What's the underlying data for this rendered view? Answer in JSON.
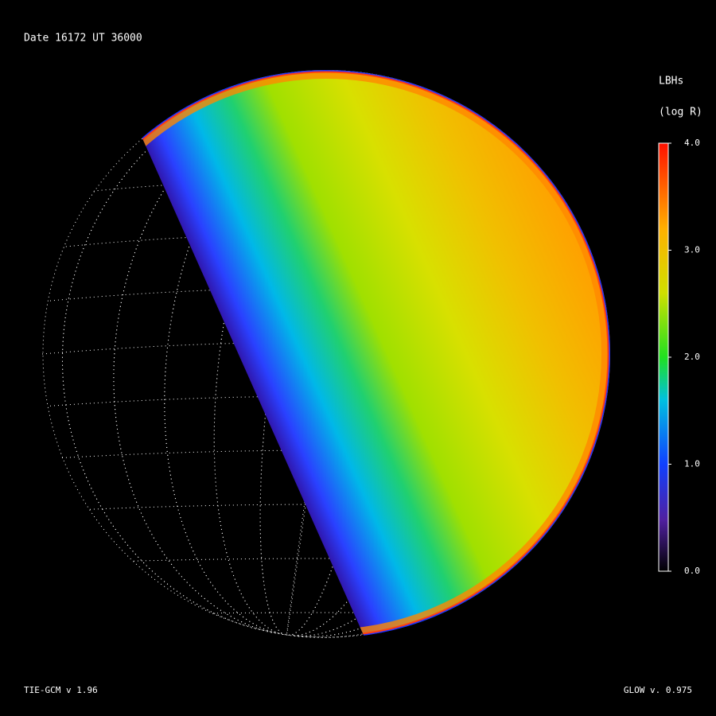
{
  "header": {
    "date": "Date 16172  UT 36000"
  },
  "colorbar": {
    "title": "LBHs",
    "units": "(log R)",
    "range": [
      0,
      4
    ],
    "ticks": [
      {
        "value": 0,
        "label": "0.0"
      },
      {
        "value": 1,
        "label": "1.0"
      },
      {
        "value": 2,
        "label": "2.0"
      },
      {
        "value": 3,
        "label": "3.0"
      },
      {
        "value": 4,
        "label": "4.0"
      }
    ]
  },
  "footer": {
    "left": "TIE-GCM v 1.96",
    "right": "GLOW v. 0.975"
  }
}
